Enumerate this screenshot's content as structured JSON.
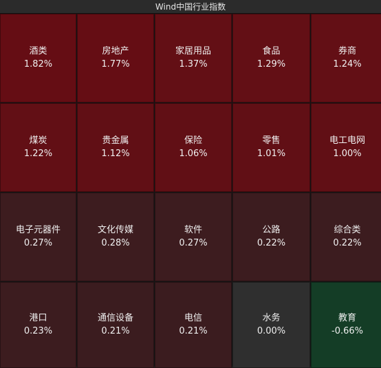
{
  "title": "Wind中国行业指数",
  "colors": {
    "strong_up": "#640d13",
    "mild_up": "#3d1c1f",
    "flat": "#2f2f2f",
    "down": "#143d26"
  },
  "tiles": [
    {
      "name": "酒类",
      "pct": "1.82%",
      "color": "#650d14"
    },
    {
      "name": "房地产",
      "pct": "1.77%",
      "color": "#650d14"
    },
    {
      "name": "家居用品",
      "pct": "1.37%",
      "color": "#630f15"
    },
    {
      "name": "食品",
      "pct": "1.29%",
      "color": "#630f15"
    },
    {
      "name": "券商",
      "pct": "1.24%",
      "color": "#630f15"
    },
    {
      "name": "煤炭",
      "pct": "1.22%",
      "color": "#620f15"
    },
    {
      "name": "贵金属",
      "pct": "1.12%",
      "color": "#610f15"
    },
    {
      "name": "保险",
      "pct": "1.06%",
      "color": "#610f15"
    },
    {
      "name": "零售",
      "pct": "1.01%",
      "color": "#610f15"
    },
    {
      "name": "电工电网",
      "pct": "1.00%",
      "color": "#610f15"
    },
    {
      "name": "电子元器件",
      "pct": "0.27%",
      "color": "#3d1c1f"
    },
    {
      "name": "文化传媒",
      "pct": "0.28%",
      "color": "#3d1c1f"
    },
    {
      "name": "软件",
      "pct": "0.27%",
      "color": "#3d1c1f"
    },
    {
      "name": "公路",
      "pct": "0.22%",
      "color": "#3c1c1f"
    },
    {
      "name": "综合类",
      "pct": "0.22%",
      "color": "#3c1c1f"
    },
    {
      "name": "港口",
      "pct": "0.23%",
      "color": "#3c1c1f"
    },
    {
      "name": "通信设备",
      "pct": "0.21%",
      "color": "#3b1c1f"
    },
    {
      "name": "电信",
      "pct": "0.21%",
      "color": "#3b1c1f"
    },
    {
      "name": "水务",
      "pct": "0.00%",
      "color": "#2f2f2f"
    },
    {
      "name": "教育",
      "pct": "-0.66%",
      "color": "#143d26"
    }
  ]
}
